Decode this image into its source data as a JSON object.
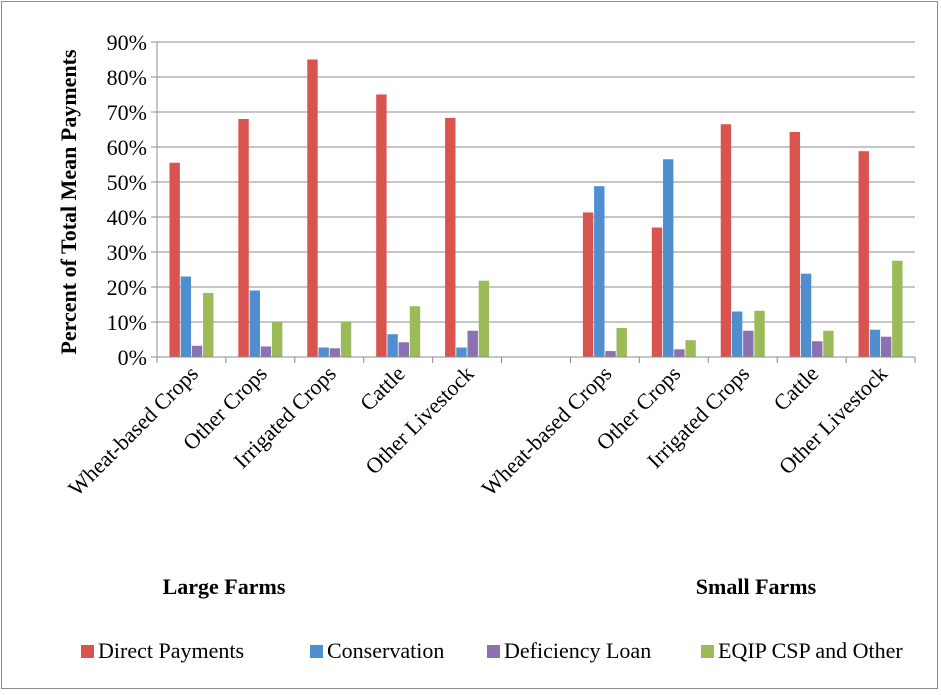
{
  "chart_data": {
    "type": "bar",
    "ylabel": "Percent of Total Mean Payments",
    "ylim": [
      0,
      90
    ],
    "yticks": [
      "0%",
      "10%",
      "20%",
      "30%",
      "40%",
      "50%",
      "60%",
      "70%",
      "80%",
      "90%"
    ],
    "grid": true,
    "legend_position": "bottom",
    "groups": [
      {
        "label": "Large Farms",
        "categories": [
          "Wheat-based Crops",
          "Other Crops",
          "Irrigated Crops",
          "Cattle",
          "Other Livestock"
        ]
      },
      {
        "label": "Small Farms",
        "categories": [
          "Wheat-based Crops",
          "Other Crops",
          "Irrigated Crops",
          "Cattle",
          "Other Livestock"
        ]
      }
    ],
    "series": [
      {
        "name": "Direct Payments",
        "color": "#d9534f",
        "values": [
          55.5,
          68,
          85,
          75,
          68.3,
          41.3,
          37,
          66.5,
          64.3,
          58.8
        ]
      },
      {
        "name": "Conservation",
        "color": "#4f8fd0",
        "values": [
          23,
          19,
          2.7,
          6.5,
          2.7,
          48.8,
          56.5,
          13,
          23.8,
          7.8
        ]
      },
      {
        "name": "Deficiency Loan",
        "color": "#8b70b2",
        "values": [
          3.2,
          3,
          2.5,
          4.2,
          7.5,
          1.7,
          2.2,
          7.5,
          4.5,
          5.8
        ]
      },
      {
        "name": "EQIP CSP and Other",
        "color": "#9bbb59",
        "values": [
          18.3,
          10,
          10,
          14.5,
          21.8,
          8.3,
          4.8,
          13.2,
          7.5,
          27.5
        ]
      }
    ]
  }
}
